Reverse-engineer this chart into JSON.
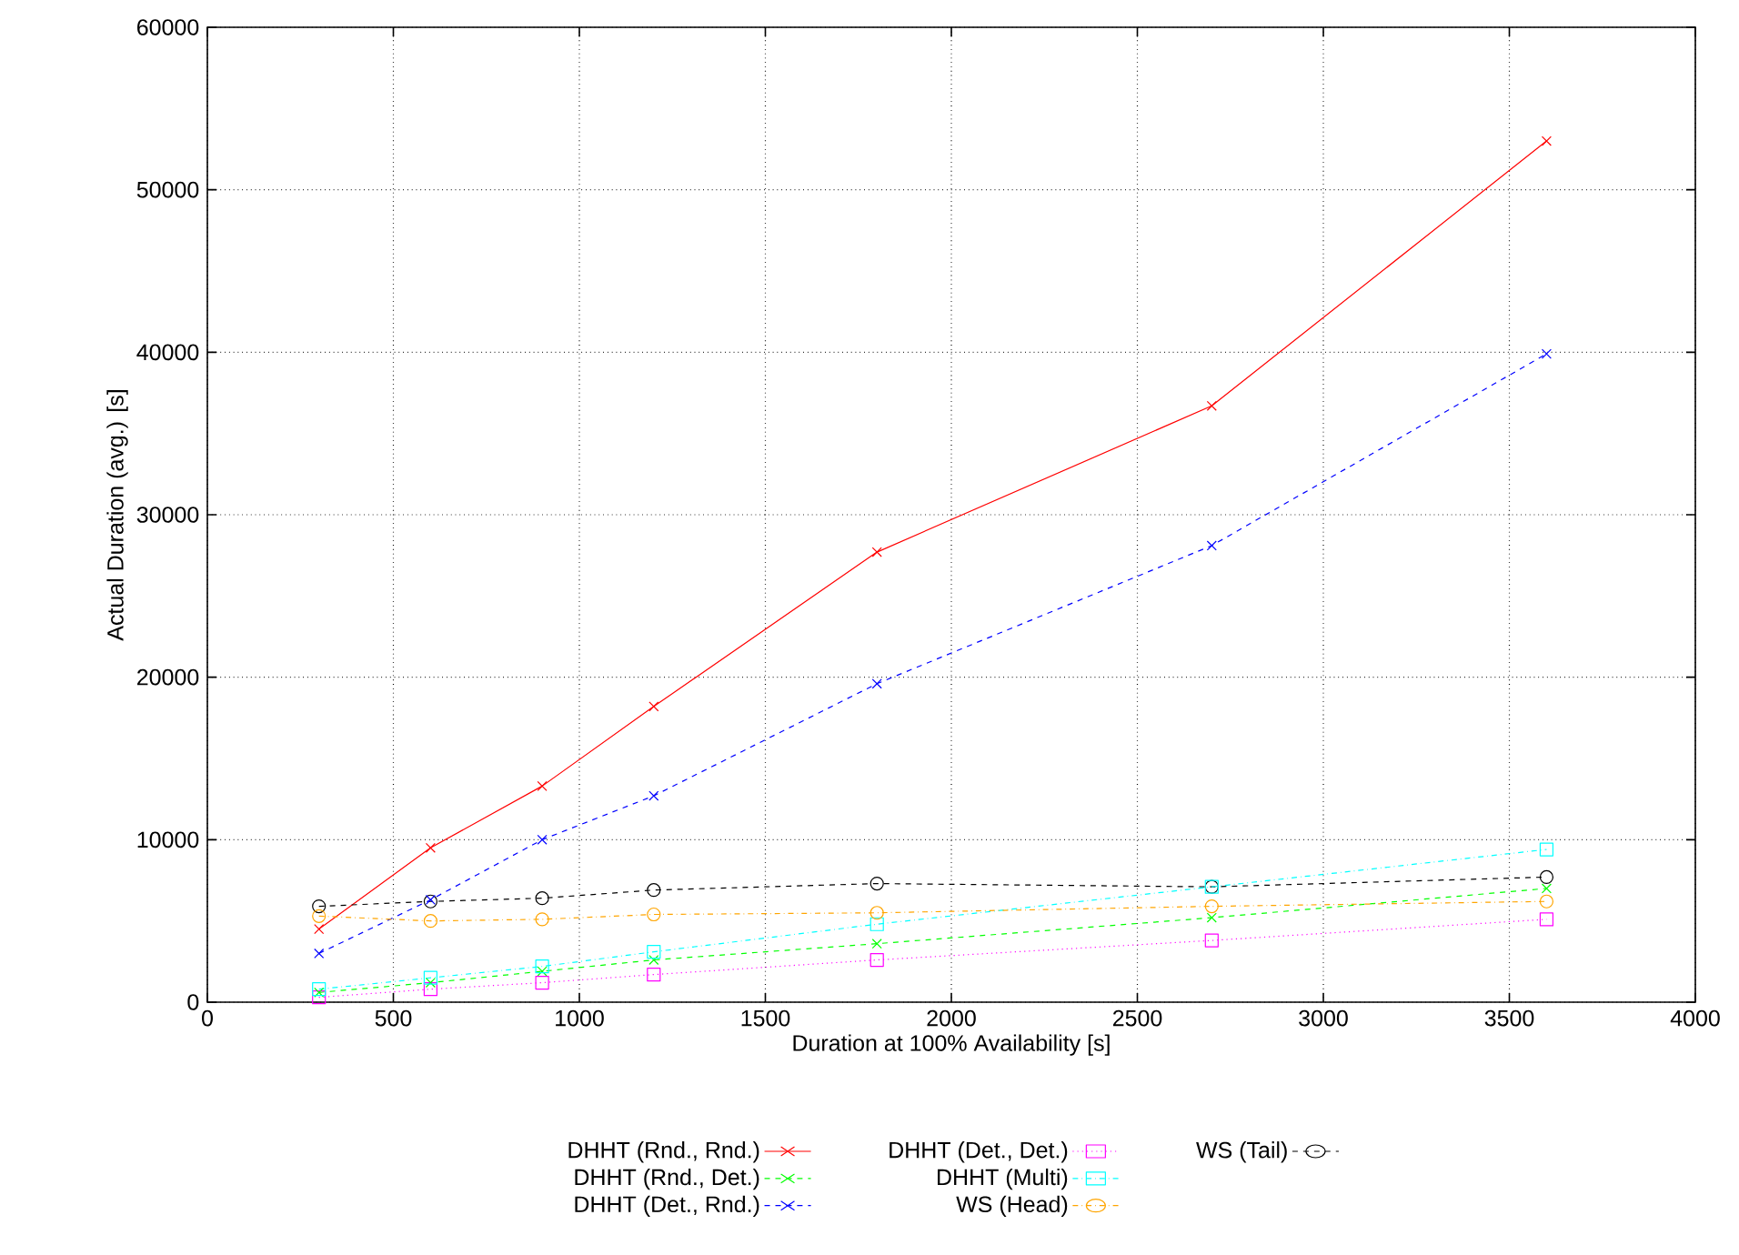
{
  "chart_data": {
    "type": "line",
    "xlabel": "Duration at 100% Availability [s]",
    "ylabel": "Actual Duration (avg.) [s]",
    "x": [
      300,
      600,
      900,
      1200,
      1800,
      2700,
      3600
    ],
    "xlim": [
      0,
      4000
    ],
    "xticks": [
      0,
      500,
      1000,
      1500,
      2000,
      2500,
      3000,
      3500,
      4000
    ],
    "ylim": [
      0,
      60000
    ],
    "yticks": [
      0,
      10000,
      20000,
      30000,
      40000,
      50000,
      60000
    ],
    "grid": true,
    "legend": "bottom",
    "series": [
      {
        "name": "DHHT (Rnd., Rnd.)",
        "color": "#ff0000",
        "marker": "cross",
        "line_style": "solid",
        "values": [
          4500,
          9500,
          13300,
          18200,
          27700,
          36700,
          53000
        ]
      },
      {
        "name": "DHHT (Rnd., Det.)",
        "color": "#00ff00",
        "marker": "cross",
        "line_style": "dashed",
        "values": [
          600,
          1200,
          1900,
          2600,
          3600,
          5200,
          7000
        ]
      },
      {
        "name": "DHHT (Det., Rnd.)",
        "color": "#0000ff",
        "marker": "cross",
        "line_style": "dashed",
        "values": [
          3000,
          6300,
          10000,
          12700,
          19600,
          28100,
          39900
        ]
      },
      {
        "name": "DHHT (Det., Det.)",
        "color": "#ff00ff",
        "marker": "square",
        "line_style": "dotted",
        "values": [
          300,
          800,
          1200,
          1700,
          2600,
          3800,
          5100
        ]
      },
      {
        "name": "DHHT (Multi)",
        "color": "#00ffff",
        "marker": "square",
        "line_style": "dashdot",
        "values": [
          800,
          1500,
          2200,
          3100,
          4800,
          7100,
          9400
        ]
      },
      {
        "name": "WS (Head)",
        "color": "#ffa500",
        "marker": "circle",
        "line_style": "dashdot",
        "values": [
          5300,
          5000,
          5100,
          5400,
          5500,
          5900,
          6200
        ]
      },
      {
        "name": "WS (Tail)",
        "color": "#000000",
        "marker": "circle",
        "line_style": "dashed",
        "values": [
          5900,
          6200,
          6400,
          6900,
          7300,
          7100,
          7700
        ]
      }
    ]
  }
}
